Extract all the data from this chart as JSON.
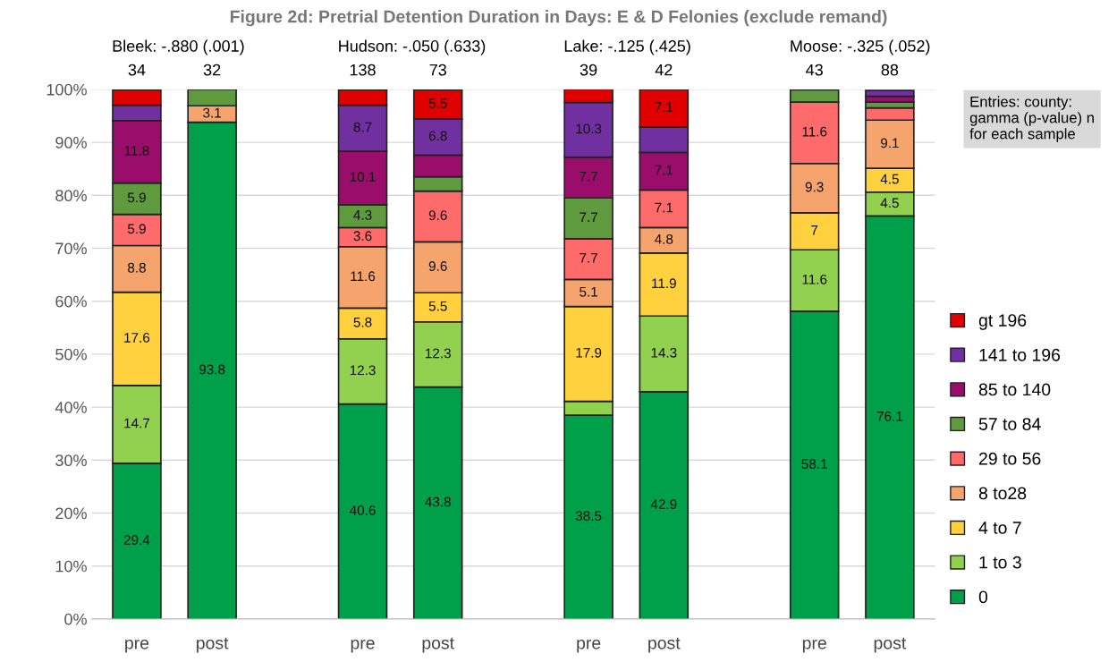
{
  "chart_data": {
    "type": "bar",
    "stacked": true,
    "title": "Figure 2d: Pretrial Detention Duration in Days: E & D Felonies (exclude remand)",
    "categories": [
      "pre",
      "post",
      null,
      "pre",
      "post",
      null,
      "pre",
      "post",
      null,
      "pre",
      "post"
    ],
    "series": [
      {
        "name": "0",
        "color": "#00a04a",
        "values": [
          29.4,
          93.8,
          null,
          40.6,
          43.8,
          null,
          38.5,
          42.9,
          null,
          58.1,
          76.1
        ],
        "value_labels": [
          "29.4",
          "93.8",
          null,
          "40.6",
          "43.8",
          null,
          "38.5",
          "42.9",
          null,
          "58.1",
          "76.1"
        ]
      },
      {
        "name": "1 to 3",
        "color": "#92d050",
        "values": [
          14.7,
          null,
          null,
          12.3,
          12.3,
          null,
          2.6,
          14.3,
          null,
          11.6,
          4.5
        ],
        "value_labels": [
          "14.7",
          null,
          null,
          "12.3",
          "12.3",
          null,
          null,
          "14.3",
          null,
          "11.6",
          "4.5"
        ]
      },
      {
        "name": "4 to 7",
        "color": "#ffd13f",
        "values": [
          17.6,
          null,
          null,
          5.8,
          5.5,
          null,
          17.9,
          11.9,
          null,
          7,
          4.5
        ],
        "value_labels": [
          "17.6",
          null,
          null,
          "5.8",
          "5.5",
          null,
          "17.9",
          "11.9",
          null,
          "7",
          "4.5"
        ]
      },
      {
        "name": "8 to28",
        "color": "#f4a46c",
        "values": [
          8.8,
          3.1,
          null,
          11.6,
          9.6,
          null,
          5.1,
          4.8,
          null,
          9.3,
          9.1
        ],
        "value_labels": [
          "8.8",
          "3.1",
          null,
          "11.6",
          "9.6",
          null,
          "5.1",
          "4.8",
          null,
          "9.3",
          "9.1"
        ]
      },
      {
        "name": "29 to 56",
        "color": "#ff6b6b",
        "values": [
          5.9,
          null,
          null,
          3.6,
          9.6,
          null,
          7.7,
          7.1,
          null,
          11.6,
          2.3
        ],
        "value_labels": [
          "5.9",
          null,
          null,
          "3.6",
          "9.6",
          null,
          "7.7",
          "7.1",
          null,
          "11.6",
          null
        ]
      },
      {
        "name": "57 to 84",
        "color": "#5f9a3e",
        "values": [
          5.9,
          3.1,
          null,
          4.3,
          2.7,
          null,
          7.7,
          null,
          null,
          2.3,
          1.1
        ],
        "value_labels": [
          "5.9",
          null,
          null,
          "4.3",
          null,
          null,
          "7.7",
          null,
          null,
          null,
          null
        ]
      },
      {
        "name": "85 to 140",
        "color": "#9b0d6b",
        "values": [
          11.8,
          null,
          null,
          10.1,
          4.1,
          null,
          7.7,
          7.1,
          null,
          null,
          1.1
        ],
        "value_labels": [
          "11.8",
          null,
          null,
          "10.1",
          null,
          null,
          "7.7",
          "7.1",
          null,
          null,
          null
        ]
      },
      {
        "name": "141 to 196",
        "color": "#7030a0",
        "values": [
          2.9,
          null,
          null,
          8.7,
          6.8,
          null,
          10.3,
          4.8,
          null,
          null,
          1.1
        ],
        "value_labels": [
          null,
          null,
          null,
          "8.7",
          "6.8",
          null,
          "10.3",
          null,
          null,
          null,
          null
        ]
      },
      {
        "name": "gt 196",
        "color": "#e00000",
        "values": [
          2.9,
          null,
          null,
          2.9,
          5.5,
          null,
          2.6,
          7.1,
          null,
          null,
          null
        ],
        "value_labels": [
          null,
          null,
          null,
          null,
          "5.5",
          null,
          null,
          "7.1",
          null,
          null,
          null
        ]
      }
    ],
    "ylim": [
      0,
      100
    ],
    "yticks": [
      {
        "value": 0,
        "label": "0%"
      },
      {
        "value": 10,
        "label": "10%"
      },
      {
        "value": 20,
        "label": "20%"
      },
      {
        "value": 30,
        "label": "30%"
      },
      {
        "value": 40,
        "label": "40%"
      },
      {
        "value": 50,
        "label": "50%"
      },
      {
        "value": 60,
        "label": "60%"
      },
      {
        "value": 70,
        "label": "70%"
      },
      {
        "value": 80,
        "label": "80%"
      },
      {
        "value": 90,
        "label": "90%"
      },
      {
        "value": 100,
        "label": "100%"
      }
    ],
    "grid": "y",
    "legend": "right",
    "annotations": [
      "Bleek: -.880 (.001)",
      "Hudson: -.050 (.633)",
      "Lake: -.125 (.425)",
      "Moose: -.325 (.052)",
      "34",
      "32",
      "138",
      "73",
      "39",
      "42",
      "43",
      "88",
      "Entries: county: gamma (p-value) n for each sample"
    ]
  }
}
